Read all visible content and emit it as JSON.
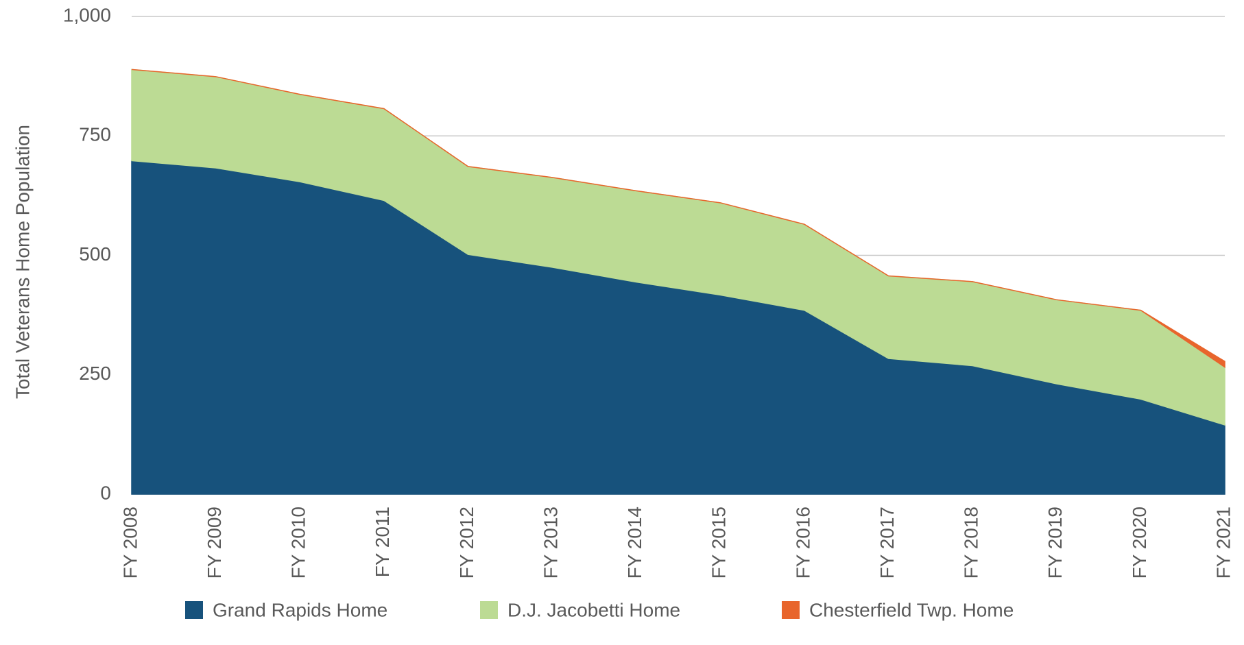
{
  "chart_data": {
    "type": "stacked_area",
    "ylabel": "Total Veterans Home Population",
    "categories": [
      "FY 2008",
      "FY 2009",
      "FY 2010",
      "FY 2011",
      "FY 2012",
      "FY 2013",
      "FY 2014",
      "FY 2015",
      "FY 2016",
      "FY 2017",
      "FY 2018",
      "FY 2019",
      "FY 2020",
      "FY 2021"
    ],
    "series": [
      {
        "name": "Grand Rapids Home",
        "color": "#17527c",
        "values": [
          698,
          683,
          654,
          615,
          502,
          475,
          444,
          417,
          385,
          284,
          269,
          231,
          199,
          145
        ]
      },
      {
        "name": "D.J. Jacobetti Home",
        "color": "#bcdb94",
        "values": [
          191,
          191,
          183,
          192,
          184,
          188,
          191,
          193,
          180,
          173,
          176,
          176,
          186,
          121
        ]
      },
      {
        "name": "Chesterfield Twp. Home",
        "color": "#e8652c",
        "values": [
          0,
          0,
          0,
          0,
          0,
          0,
          0,
          0,
          0,
          0,
          0,
          0,
          0,
          12
        ]
      }
    ],
    "ylim": [
      0,
      1000
    ],
    "yticks": [
      0,
      250,
      500,
      750,
      {
        "value": 1000,
        "label": "1,000"
      }
    ],
    "grid": true,
    "legend": "bottom"
  }
}
